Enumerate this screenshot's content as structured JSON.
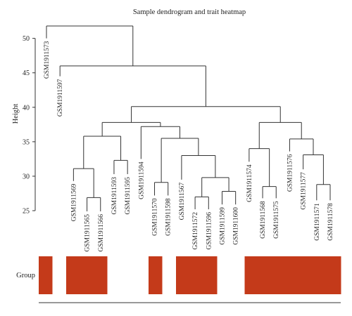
{
  "chart_data": {
    "type": "dendrogram-heatmap",
    "title": "Sample dendrogram and trait heatmap",
    "ylabel": "Height",
    "ylim": [
      25,
      52
    ],
    "yticks": [
      25,
      30,
      35,
      40,
      45,
      50
    ],
    "leaves": [
      "GSM1911573",
      "GSM1911597",
      "GSM1911569",
      "GSM1911565",
      "GSM1911566",
      "GSM1911593",
      "GSM1911595",
      "GSM1911594",
      "GSM1911570",
      "GSM1911598",
      "GSM1911567",
      "GSM1911572",
      "GSM1911596",
      "GSM1911599",
      "GSM1911600",
      "GSM1911574",
      "GSM1911568",
      "GSM1911575",
      "GSM1911576",
      "GSM1911577",
      "GSM1911571",
      "GSM1911578"
    ],
    "leaf_heights": [
      50.0,
      44.5,
      29.3,
      24.9,
      24.9,
      30.3,
      30.3,
      32.5,
      27.2,
      27.2,
      29.5,
      25.2,
      25.2,
      25.9,
      25.9,
      32.1,
      26.8,
      26.8,
      33.6,
      31.0,
      26.5,
      26.5
    ],
    "merges": [
      {
        "a": "GSM1911565",
        "b": "GSM1911566",
        "height": 26.9
      },
      {
        "a": "GSM1911572",
        "b": "GSM1911596",
        "height": 27.0
      },
      {
        "a": "GSM1911599",
        "b": "GSM1911600",
        "height": 27.8
      },
      {
        "a": "GSM1911571",
        "b": "GSM1911578",
        "height": 28.8
      },
      {
        "a": "GSM1911568",
        "b": "GSM1911575",
        "height": 28.5
      },
      {
        "a": "GSM1911570",
        "b": "GSM1911598",
        "height": 29.1
      },
      {
        "a": "(GSM1911572,GSM1911596)",
        "b": "(GSM1911599,GSM1911600)",
        "height": 29.8
      },
      {
        "a": "GSM1911569",
        "b": "(GSM1911565,GSM1911566)",
        "height": 31.1
      },
      {
        "a": "GSM1911593",
        "b": "GSM1911595",
        "height": 32.3
      },
      {
        "a": "GSM1911567",
        "b": "(GSM1911572,GSM1911596,GSM1911599,GSM1911600)",
        "height": 33.0
      },
      {
        "a": "GSM1911577",
        "b": "(GSM1911571,GSM1911578)",
        "height": 33.1
      },
      {
        "a": "GSM1911574",
        "b": "(GSM1911568,GSM1911575)",
        "height": 34.0
      },
      {
        "a": "GSM1911576",
        "b": "(GSM1911577,GSM1911571,GSM1911578)",
        "height": 35.4
      },
      {
        "a": "(GSM1911570,GSM1911598)",
        "b": "(GSM1911567,...,GSM1911600)",
        "height": 35.5
      },
      {
        "a": "(GSM1911569,GSM1911565,GSM1911566)",
        "b": "(GSM1911593,GSM1911595)",
        "height": 35.8
      },
      {
        "a": "GSM1911594",
        "b": "(GSM1911570,...,GSM1911600)",
        "height": 37.2
      },
      {
        "a": "(GSM1911574,GSM1911568,GSM1911575)",
        "b": "(GSM1911576,...,GSM1911578)",
        "height": 37.8
      },
      {
        "a": "(GSM1911569,...,GSM1911595)",
        "b": "(GSM1911594,...,GSM1911600)",
        "height": 37.8
      },
      {
        "a": "(GSM1911569,...,GSM1911600)",
        "b": "(GSM1911574,...,GSM1911578)",
        "height": 40.1
      },
      {
        "a": "GSM1911597",
        "b": "(GSM1911569,...,GSM1911578)",
        "height": 46.0
      },
      {
        "a": "GSM1911573",
        "b": "(GSM1911597,...,GSM1911578)",
        "height": 51.8
      }
    ],
    "heatmap": {
      "row_label": "Group",
      "color_high": "#c43a1a",
      "color_low": "#ffffff",
      "values": [
        1,
        0,
        1,
        1,
        1,
        0,
        0,
        0,
        1,
        0,
        1,
        1,
        1,
        0,
        0,
        1,
        1,
        1,
        1,
        1,
        1,
        1
      ]
    }
  }
}
